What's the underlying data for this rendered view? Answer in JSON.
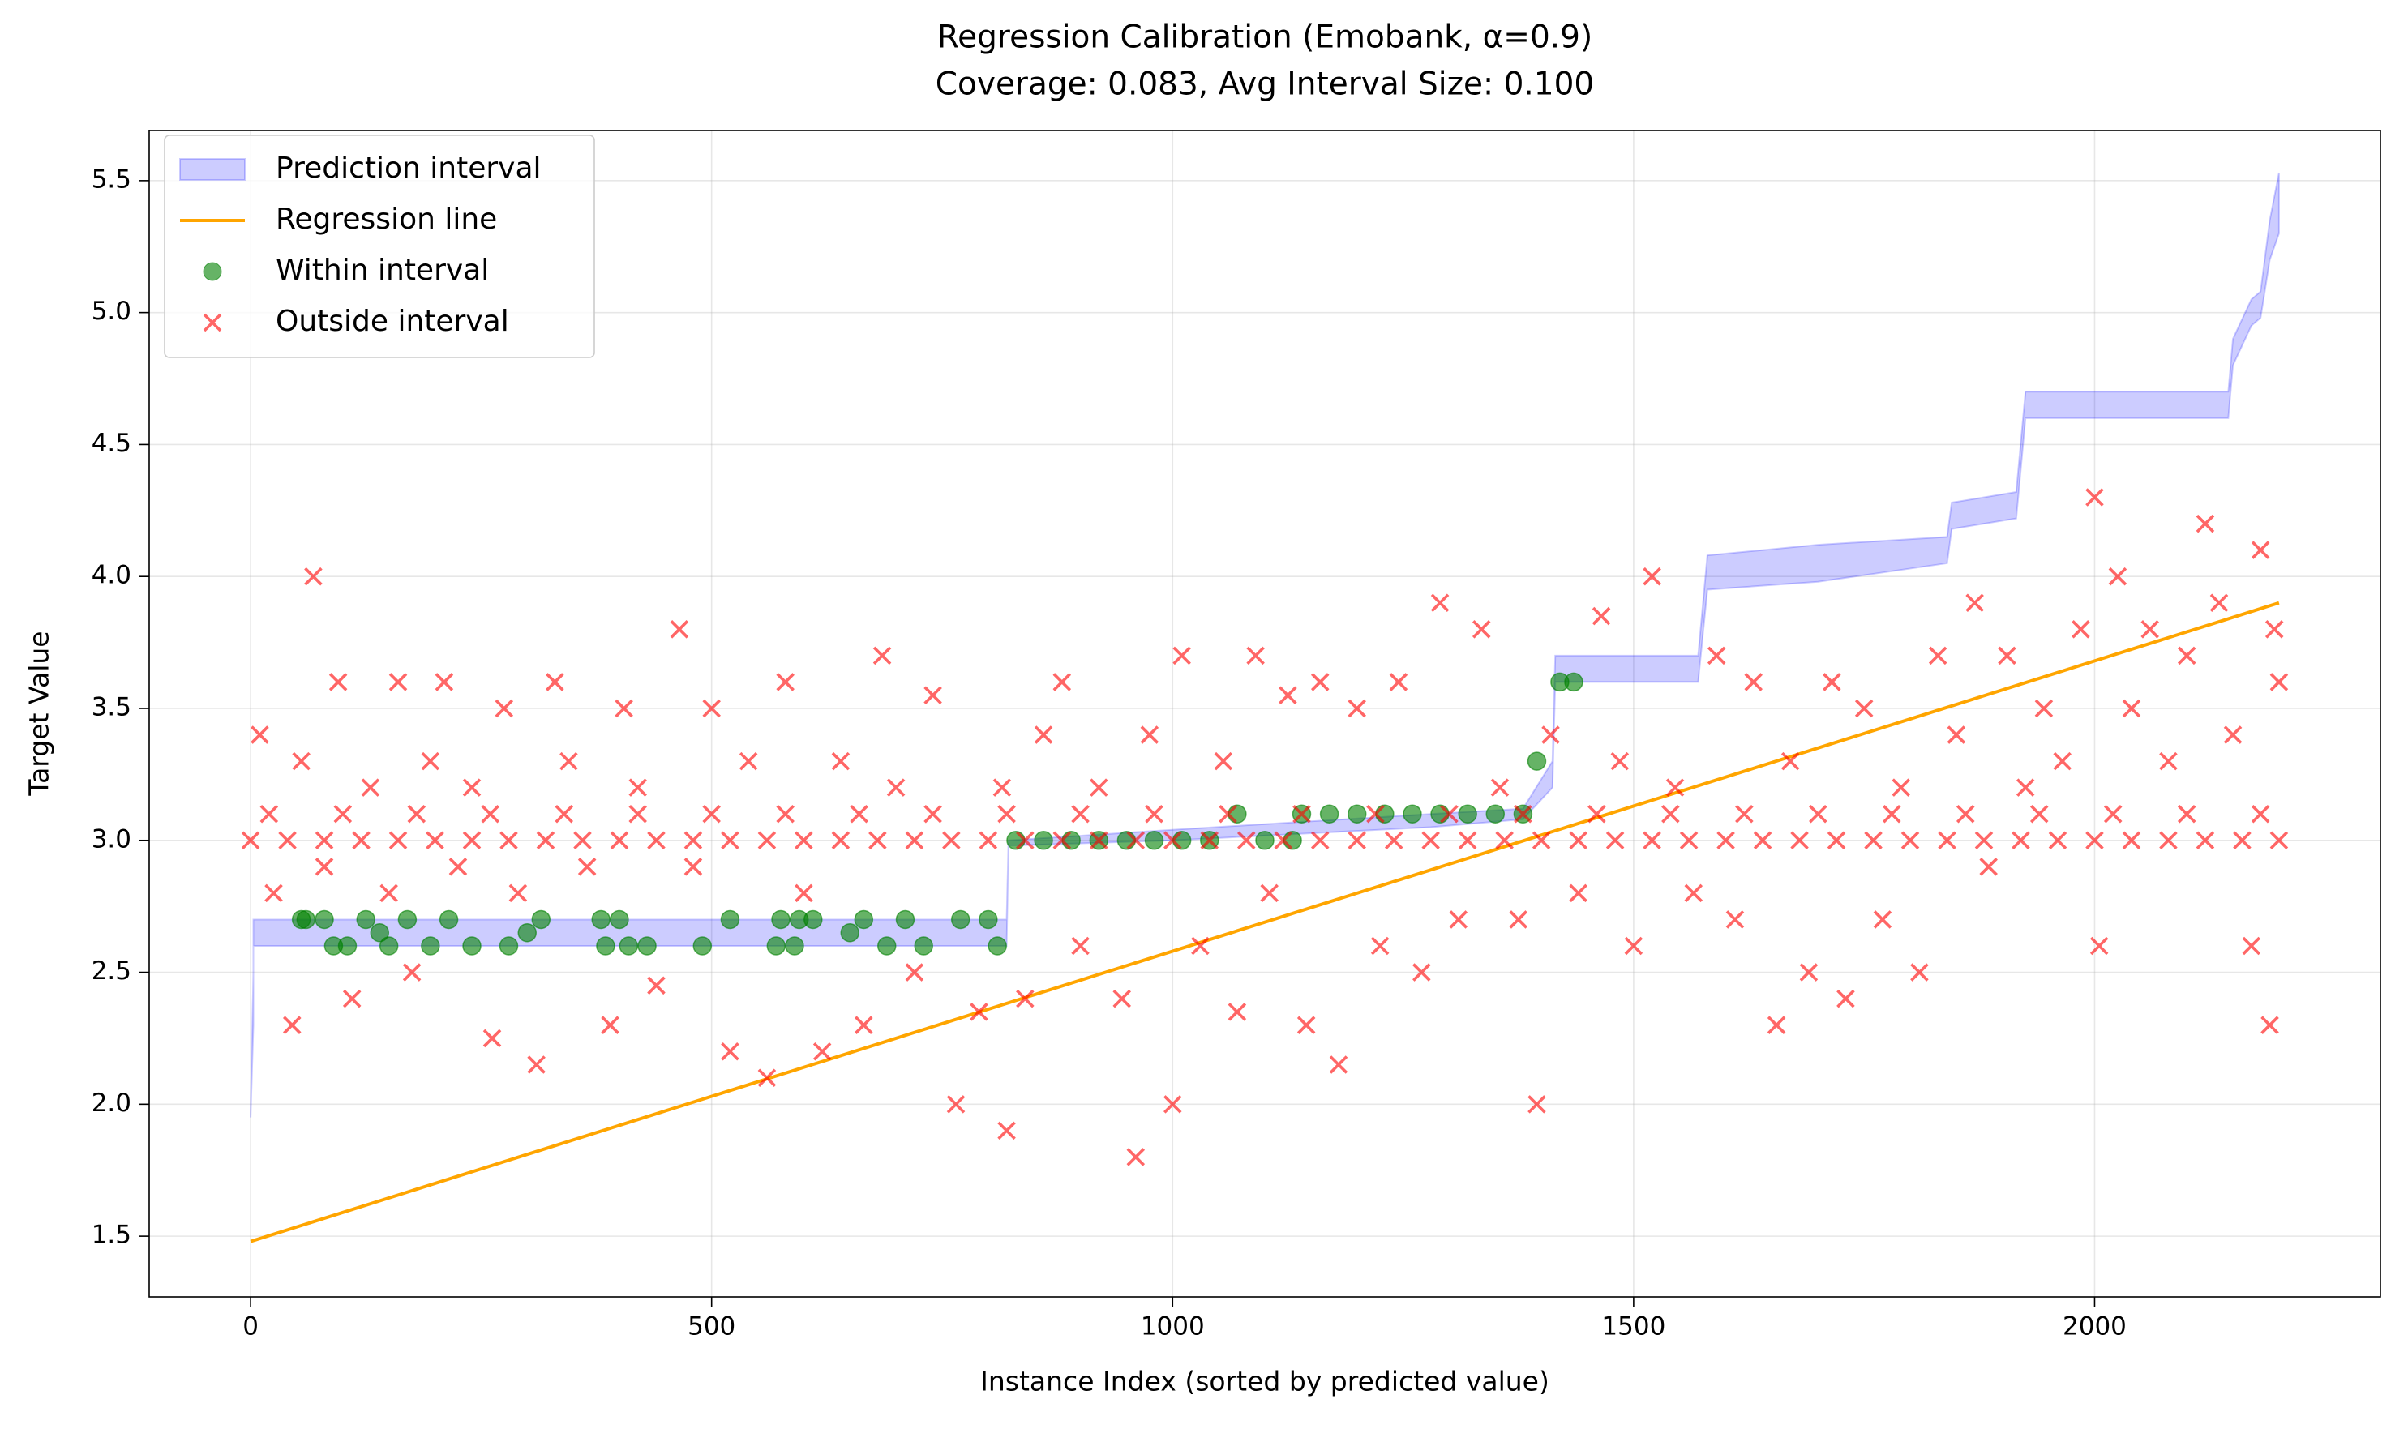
{
  "chart_data": {
    "type": "scatter",
    "title": "Regression Calibration (Emobank, α=0.9)",
    "subtitle": "Coverage: 0.083, Avg Interval Size: 0.100",
    "xlabel": "Instance Index (sorted by predicted value)",
    "ylabel": "Target Value",
    "xlim": [
      -110,
      2310
    ],
    "ylim": [
      1.27,
      5.69
    ],
    "xticks": [
      0,
      500,
      1000,
      1500,
      2000
    ],
    "yticks": [
      1.5,
      {
        "value": 2,
        "label": "2.0"
      },
      2.5,
      {
        "value": 3,
        "label": "3.0"
      },
      3.5,
      {
        "value": 4,
        "label": "4.0"
      },
      4.5,
      {
        "value": 5,
        "label": "5.0"
      },
      5.5
    ],
    "grid": true,
    "legend": "upper left",
    "series": [
      {
        "name": "Prediction interval",
        "type": "area",
        "color": "#0000ff",
        "x": [
          0,
          3,
          3,
          820,
          822,
          1000,
          1280,
          1380,
          1412,
          1415,
          1570,
          1580,
          1700,
          1840,
          1845,
          1915,
          1925,
          2145,
          2150,
          2170,
          2180,
          2190,
          2200
        ],
        "lower": [
          1.95,
          2.3,
          2.6,
          2.6,
          2.98,
          3.0,
          3.05,
          3.08,
          3.2,
          3.6,
          3.6,
          3.95,
          3.98,
          4.05,
          4.18,
          4.22,
          4.6,
          4.6,
          4.8,
          4.95,
          4.98,
          5.2,
          5.3
        ],
        "upper": [
          1.97,
          2.5,
          2.7,
          2.7,
          3.0,
          3.04,
          3.1,
          3.12,
          3.3,
          3.7,
          3.7,
          4.08,
          4.12,
          4.15,
          4.28,
          4.32,
          4.7,
          4.7,
          4.9,
          5.05,
          5.08,
          5.35,
          5.53
        ]
      },
      {
        "name": "Regression line",
        "type": "line",
        "color": "#ffa500",
        "x": [
          0,
          2200
        ],
        "values": [
          1.48,
          3.9
        ]
      },
      {
        "name": "Within interval",
        "type": "scatter",
        "marker": "circle",
        "color": "#008000",
        "x": [
          55,
          60,
          80,
          90,
          105,
          125,
          140,
          150,
          170,
          195,
          215,
          240,
          280,
          300,
          315,
          380,
          385,
          400,
          410,
          430,
          490,
          520,
          570,
          575,
          590,
          595,
          610,
          650,
          665,
          690,
          710,
          730,
          770,
          800,
          810,
          830,
          860,
          890,
          920,
          950,
          980,
          1010,
          1040,
          1070,
          1100,
          1130,
          1140,
          1170,
          1200,
          1230,
          1260,
          1290,
          1320,
          1350,
          1380,
          1395,
          1420,
          1435
        ],
        "values": [
          2.7,
          2.7,
          2.7,
          2.6,
          2.6,
          2.7,
          2.65,
          2.6,
          2.7,
          2.6,
          2.7,
          2.6,
          2.6,
          2.65,
          2.7,
          2.7,
          2.6,
          2.7,
          2.6,
          2.6,
          2.6,
          2.7,
          2.6,
          2.7,
          2.6,
          2.7,
          2.7,
          2.65,
          2.7,
          2.6,
          2.7,
          2.6,
          2.7,
          2.7,
          2.6,
          3.0,
          3.0,
          3.0,
          3.0,
          3.0,
          3.0,
          3.0,
          3.0,
          3.1,
          3.0,
          3.0,
          3.1,
          3.1,
          3.1,
          3.1,
          3.1,
          3.1,
          3.1,
          3.1,
          3.1,
          3.3,
          3.6,
          3.6
        ]
      },
      {
        "name": "Outside interval",
        "type": "scatter",
        "marker": "x",
        "color": "#ff0000",
        "x": [
          0,
          40,
          80,
          120,
          160,
          200,
          240,
          280,
          320,
          360,
          400,
          440,
          480,
          520,
          560,
          600,
          640,
          680,
          720,
          760,
          800,
          840,
          880,
          920,
          960,
          1000,
          1040,
          1080,
          1120,
          1160,
          1200,
          1240,
          1280,
          1320,
          1360,
          1400,
          1440,
          1480,
          1520,
          1560,
          1600,
          1640,
          1680,
          1720,
          1760,
          1800,
          1840,
          1880,
          1920,
          1960,
          2000,
          2040,
          2080,
          2120,
          2160,
          2200,
          20,
          100,
          180,
          260,
          340,
          420,
          500,
          580,
          660,
          740,
          820,
          900,
          980,
          1060,
          1140,
          1220,
          1300,
          1380,
          1460,
          1540,
          1620,
          1700,
          1780,
          1860,
          1940,
          2020,
          2100,
          2180,
          10,
          25,
          45,
          55,
          68,
          80,
          95,
          110,
          130,
          150,
          160,
          175,
          195,
          210,
          225,
          240,
          262,
          275,
          290,
          310,
          330,
          345,
          365,
          390,
          405,
          420,
          440,
          465,
          480,
          500,
          520,
          540,
          560,
          580,
          600,
          620,
          640,
          665,
          685,
          700,
          720,
          740,
          765,
          790,
          815,
          820,
          840,
          860,
          880,
          900,
          920,
          945,
          960,
          975,
          1000,
          1010,
          1030,
          1055,
          1070,
          1090,
          1105,
          1125,
          1145,
          1160,
          1180,
          1200,
          1225,
          1245,
          1270,
          1290,
          1310,
          1335,
          1355,
          1375,
          1395,
          1410,
          1440,
          1465,
          1485,
          1500,
          1520,
          1545,
          1565,
          1590,
          1610,
          1630,
          1655,
          1670,
          1690,
          1715,
          1730,
          1750,
          1770,
          1790,
          1810,
          1830,
          1850,
          1870,
          1885,
          1905,
          1925,
          1945,
          1965,
          1985,
          2000,
          2005,
          2025,
          2040,
          2060,
          2080,
          2100,
          2120,
          2135,
          2150,
          2170,
          2180,
          2190,
          2195,
          2200
        ],
        "values": [
          3,
          3,
          3,
          3,
          3,
          3,
          3,
          3,
          3,
          3,
          3,
          3,
          3,
          3,
          3,
          3,
          3,
          3,
          3,
          3,
          3,
          3,
          3,
          3,
          3,
          3,
          3,
          3,
          3,
          3,
          3,
          3,
          3,
          3,
          3,
          3,
          3,
          3,
          3,
          3,
          3,
          3,
          3,
          3,
          3,
          3,
          3,
          3,
          3,
          3,
          3,
          3,
          3,
          3,
          3,
          3,
          3.1,
          3.1,
          3.1,
          3.1,
          3.1,
          3.1,
          3.1,
          3.1,
          3.1,
          3.1,
          3.1,
          3.1,
          3.1,
          3.1,
          3.1,
          3.1,
          3.1,
          3.1,
          3.1,
          3.1,
          3.1,
          3.1,
          3.1,
          3.1,
          3.1,
          3.1,
          3.1,
          3.1,
          3.4,
          2.8,
          2.3,
          3.3,
          4.0,
          2.9,
          3.6,
          2.4,
          3.2,
          2.8,
          3.6,
          2.5,
          3.3,
          3.6,
          2.9,
          3.2,
          2.25,
          3.5,
          2.8,
          2.15,
          3.6,
          3.3,
          2.9,
          2.3,
          3.5,
          3.2,
          2.45,
          3.8,
          2.9,
          3.5,
          2.2,
          3.3,
          2.1,
          3.6,
          2.8,
          2.2,
          3.3,
          2.3,
          3.7,
          3.2,
          2.5,
          3.55,
          2.0,
          2.35,
          3.2,
          1.9,
          2.4,
          3.4,
          3.6,
          2.6,
          3.2,
          2.4,
          1.8,
          3.4,
          2.0,
          3.7,
          2.6,
          3.3,
          2.35,
          3.7,
          2.8,
          3.55,
          2.3,
          3.6,
          2.15,
          3.5,
          2.6,
          3.6,
          2.5,
          3.9,
          2.7,
          3.8,
          3.2,
          2.7,
          2.0,
          3.4,
          2.8,
          3.85,
          3.3,
          2.6,
          4.0,
          3.2,
          2.8,
          3.7,
          2.7,
          3.6,
          2.3,
          3.3,
          2.5,
          3.6,
          2.4,
          3.5,
          2.7,
          3.2,
          2.5,
          3.7,
          3.4,
          3.9,
          2.9,
          3.7,
          3.2,
          3.5,
          3.3,
          3.8,
          4.3,
          2.6,
          4.0,
          3.5,
          3.8,
          3.3,
          3.7,
          4.2,
          3.9,
          3.4,
          2.6,
          4.1,
          2.3,
          3.8,
          3.6
        ]
      }
    ]
  }
}
